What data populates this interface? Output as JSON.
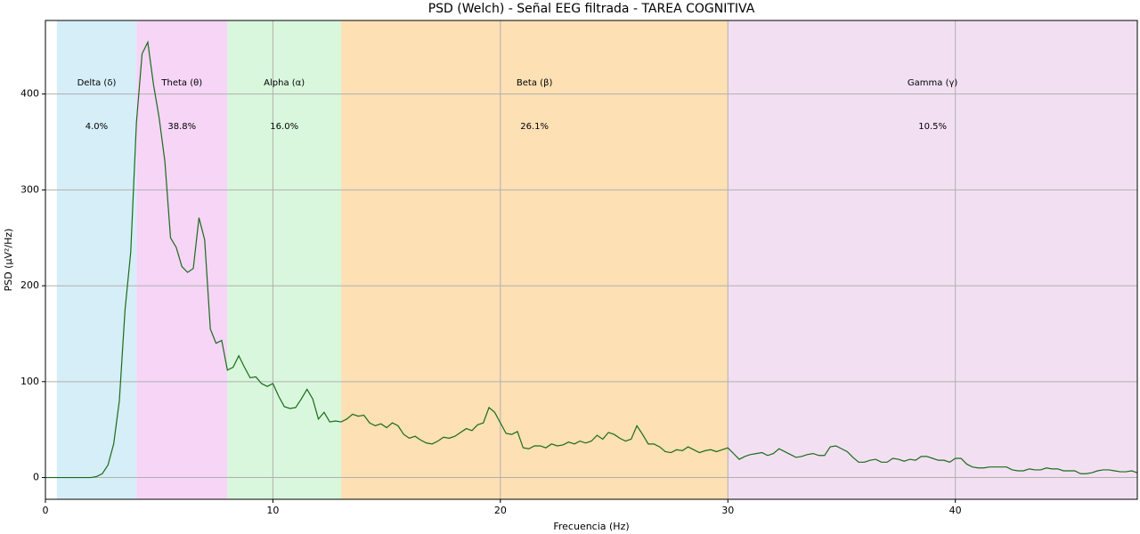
{
  "chart_data": {
    "type": "line",
    "title": "PSD (Welch) - Señal EEG filtrada - TAREA COGNITIVA",
    "x_label": "Frecuencia (Hz)",
    "y_label": "PSD (µV²/Hz)",
    "color": "#1a6b1a",
    "grid": true,
    "xlim": [
      0,
      48
    ],
    "xticks": [
      0,
      10,
      20,
      30,
      40
    ],
    "ylim": [
      -22.7,
      476.7
    ],
    "yticks": [
      0,
      100,
      200,
      300,
      400
    ],
    "x": [
      0,
      0.25,
      0.5,
      0.75,
      1,
      1.25,
      1.5,
      1.75,
      2,
      2.25,
      2.5,
      2.75,
      3,
      3.25,
      3.5,
      3.75,
      4,
      4.25,
      4.5,
      4.75,
      5,
      5.25,
      5.5,
      5.75,
      6,
      6.25,
      6.5,
      6.75,
      7,
      7.25,
      7.5,
      7.75,
      8,
      8.25,
      8.5,
      8.75,
      9,
      9.25,
      9.5,
      9.75,
      10,
      10.25,
      10.5,
      10.75,
      11,
      11.25,
      11.5,
      11.75,
      12,
      12.25,
      12.5,
      12.75,
      13,
      13.25,
      13.5,
      13.75,
      14,
      14.25,
      14.5,
      14.75,
      15,
      15.25,
      15.5,
      15.75,
      16,
      16.25,
      16.5,
      16.75,
      17,
      17.25,
      17.5,
      17.75,
      18,
      18.25,
      18.5,
      18.75,
      19,
      19.25,
      19.5,
      19.75,
      20,
      20.25,
      20.5,
      20.75,
      21,
      21.25,
      21.5,
      21.75,
      22,
      22.25,
      22.5,
      22.75,
      23,
      23.25,
      23.5,
      23.75,
      24,
      24.25,
      24.5,
      24.75,
      25,
      25.25,
      25.5,
      25.75,
      26,
      26.25,
      26.5,
      26.75,
      27,
      27.25,
      27.5,
      27.75,
      28,
      28.25,
      28.5,
      28.75,
      29,
      29.25,
      29.5,
      29.75,
      30,
      30.25,
      30.5,
      30.75,
      31,
      31.25,
      31.5,
      31.75,
      32,
      32.25,
      32.5,
      32.75,
      33,
      33.25,
      33.5,
      33.75,
      34,
      34.25,
      34.5,
      34.75,
      35,
      35.25,
      35.5,
      35.75,
      36,
      36.25,
      36.5,
      36.75,
      37,
      37.25,
      37.5,
      37.75,
      38,
      38.25,
      38.5,
      38.75,
      39,
      39.25,
      39.5,
      39.75,
      40,
      40.25,
      40.5,
      40.75,
      41,
      41.25,
      41.5,
      41.75,
      42,
      42.25,
      42.5,
      42.75,
      43,
      43.25,
      43.5,
      43.75,
      44,
      44.25,
      44.5,
      44.75,
      45,
      45.25,
      45.5,
      45.75,
      46,
      46.25,
      46.5,
      46.75,
      47,
      47.25,
      47.5,
      47.75,
      48
    ],
    "values": [
      0,
      0,
      0,
      0,
      0,
      0,
      0,
      0,
      0,
      1,
      4,
      13,
      35,
      80,
      175,
      235,
      370,
      442,
      454,
      410,
      375,
      330,
      250,
      240,
      220,
      214,
      218,
      271,
      248,
      155,
      140,
      143,
      112,
      115,
      127,
      115,
      104,
      105,
      98,
      95,
      98,
      85,
      74,
      72,
      73,
      82,
      92,
      82,
      61,
      68,
      58,
      59,
      58,
      61,
      66,
      64,
      65,
      57,
      54,
      56,
      52,
      57,
      54,
      45,
      41,
      43,
      39,
      36,
      35,
      38,
      42,
      41,
      43,
      47,
      51,
      49,
      55,
      57,
      73,
      68,
      57,
      46,
      45,
      48,
      31,
      30,
      33,
      33,
      31,
      35,
      33,
      34,
      37,
      35,
      38,
      36,
      38,
      44,
      40,
      47,
      45,
      41,
      38,
      40,
      54,
      45,
      35,
      35,
      32,
      27,
      26,
      29,
      28,
      32,
      29,
      26,
      28,
      29,
      27,
      29,
      31,
      25,
      19,
      22,
      24,
      25,
      26,
      23,
      25,
      30,
      27,
      24,
      21,
      22,
      24,
      25,
      23,
      23,
      32,
      33,
      30,
      27,
      21,
      16,
      16,
      18,
      19,
      16,
      16,
      20,
      19,
      17,
      19,
      18,
      22,
      22,
      20,
      18,
      18,
      16,
      20,
      20,
      14,
      11,
      10,
      10,
      11,
      11,
      11,
      11,
      8,
      7,
      7,
      9,
      8,
      8,
      10,
      9,
      9,
      7,
      7,
      7,
      4,
      4,
      5,
      7,
      8,
      8,
      7,
      6,
      6,
      7,
      5
    ],
    "bands": {
      "names": [
        "Delta (δ)",
        "Theta (θ)",
        "Alpha (α)",
        "Beta (β)",
        "Gamma (γ)"
      ],
      "ranges": [
        [
          0.5,
          4
        ],
        [
          4,
          8
        ],
        [
          8,
          13
        ],
        [
          13,
          30
        ],
        [
          30,
          48
        ]
      ],
      "colors": [
        "#d6eef7",
        "#f6d5f7",
        "#d9f7dc",
        "#fde0b4",
        "#f2e0f2"
      ],
      "values": [
        4.0,
        38.8,
        16.0,
        26.1,
        10.5
      ],
      "value_labels": [
        "4.0%",
        "38.8%",
        "16.0%",
        "26.1%",
        "10.5%"
      ]
    }
  }
}
